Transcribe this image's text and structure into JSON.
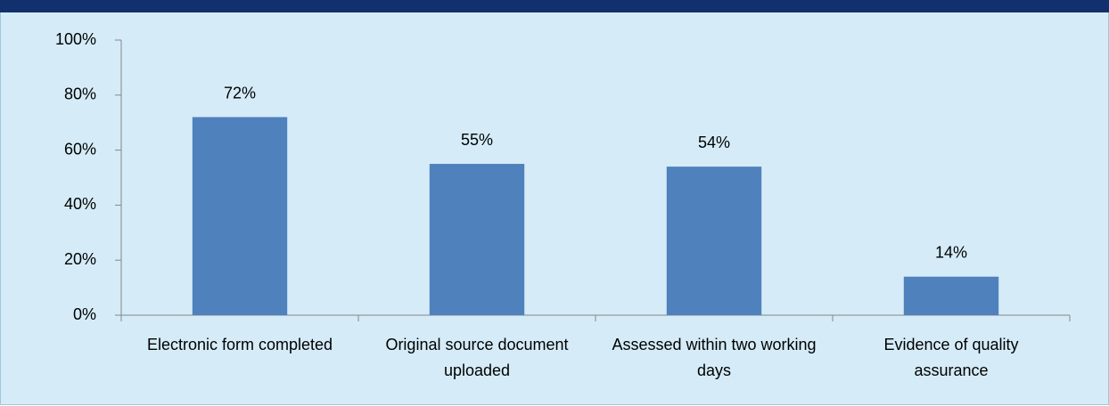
{
  "chart_data": {
    "type": "bar",
    "categories": [
      "Electronic form completed",
      "Original source document uploaded",
      "Assessed within two working days",
      "Evidence of quality assurance"
    ],
    "values": [
      72,
      55,
      54,
      14
    ],
    "value_labels": [
      "72%",
      "55%",
      "54%",
      "14%"
    ],
    "color": "#4f81bd",
    "ylim": [
      0,
      100
    ],
    "yticks": [
      {
        "value": 0,
        "label": "0%"
      },
      {
        "value": 20,
        "label": "20%"
      },
      {
        "value": 40,
        "label": "40%"
      },
      {
        "value": 60,
        "label": "60%"
      },
      {
        "value": 80,
        "label": "80%"
      },
      {
        "value": 100,
        "label": "100%"
      }
    ],
    "grid": false
  }
}
